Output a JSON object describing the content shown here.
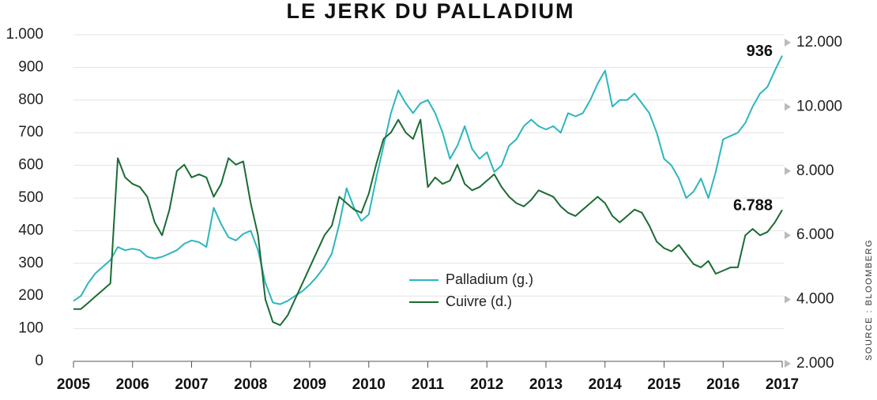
{
  "chart_data": {
    "type": "line",
    "title": "LE JERK DU PALLADIUM",
    "source": "SOURCE : BLOOMBERG",
    "x": [
      2005,
      2005.125,
      2005.25,
      2005.375,
      2005.5,
      2005.625,
      2005.75,
      2005.875,
      2006,
      2006.125,
      2006.25,
      2006.375,
      2006.5,
      2006.625,
      2006.75,
      2006.875,
      2007,
      2007.125,
      2007.25,
      2007.375,
      2007.5,
      2007.625,
      2007.75,
      2007.875,
      2008,
      2008.125,
      2008.25,
      2008.375,
      2008.5,
      2008.625,
      2008.75,
      2008.875,
      2009,
      2009.125,
      2009.25,
      2009.375,
      2009.5,
      2009.625,
      2009.75,
      2009.875,
      2010,
      2010.125,
      2010.25,
      2010.375,
      2010.5,
      2010.625,
      2010.75,
      2010.875,
      2011,
      2011.125,
      2011.25,
      2011.375,
      2011.5,
      2011.625,
      2011.75,
      2011.875,
      2012,
      2012.125,
      2012.25,
      2012.375,
      2012.5,
      2012.625,
      2012.75,
      2012.875,
      2013,
      2013.125,
      2013.25,
      2013.375,
      2013.5,
      2013.625,
      2013.75,
      2013.875,
      2014,
      2014.125,
      2014.25,
      2014.375,
      2014.5,
      2014.625,
      2014.75,
      2014.875,
      2015,
      2015.125,
      2015.25,
      2015.375,
      2015.5,
      2015.625,
      2015.75,
      2015.875,
      2016,
      2016.125,
      2016.25,
      2016.375,
      2016.5,
      2016.625,
      2016.75,
      2016.875,
      2017
    ],
    "series": [
      {
        "name": "Palladium (g.)",
        "color": "#2db6bd",
        "axis": "y",
        "values": [
          185,
          200,
          240,
          270,
          290,
          310,
          350,
          340,
          345,
          340,
          320,
          315,
          320,
          330,
          340,
          360,
          370,
          365,
          350,
          470,
          420,
          380,
          370,
          390,
          400,
          340,
          240,
          180,
          175,
          185,
          200,
          215,
          235,
          260,
          290,
          330,
          420,
          530,
          470,
          430,
          450,
          560,
          660,
          760,
          830,
          790,
          760,
          790,
          800,
          760,
          700,
          620,
          660,
          720,
          650,
          620,
          640,
          580,
          600,
          660,
          680,
          720,
          740,
          720,
          710,
          720,
          700,
          760,
          750,
          760,
          800,
          850,
          890,
          780,
          800,
          800,
          820,
          790,
          760,
          700,
          620,
          600,
          560,
          500,
          520,
          560,
          500,
          580,
          680,
          690,
          700,
          730,
          780,
          820,
          840,
          890,
          936
        ],
        "value_labels": [
          null,
          null,
          null,
          null,
          null,
          null,
          null,
          null,
          null,
          null,
          null,
          null,
          null,
          null,
          null,
          null,
          null,
          null,
          null,
          null,
          null,
          null,
          null,
          null,
          null,
          null,
          null,
          null,
          null,
          null,
          null,
          null,
          null,
          null,
          null,
          null,
          null,
          null,
          null,
          null,
          null,
          null,
          null,
          null,
          null,
          null,
          null,
          null,
          null,
          null,
          null,
          null,
          null,
          null,
          null,
          null,
          null,
          null,
          null,
          null,
          null,
          null,
          null,
          null,
          null,
          null,
          null,
          null,
          null,
          null,
          null,
          null,
          null,
          null,
          null,
          null,
          null,
          null,
          null,
          null,
          null,
          null,
          null,
          null,
          null,
          null,
          null,
          null,
          null,
          null,
          null,
          null,
          null,
          null,
          null,
          null,
          "936"
        ]
      },
      {
        "name": "Cuivre (d.)",
        "color": "#1b6b34",
        "axis": "y2",
        "values": [
          3700,
          3700,
          3900,
          4100,
          4300,
          4500,
          8400,
          7800,
          7600,
          7500,
          7200,
          6400,
          6000,
          6800,
          8000,
          8200,
          7800,
          7900,
          7800,
          7200,
          7600,
          8400,
          8200,
          8300,
          7000,
          6000,
          4000,
          3300,
          3200,
          3500,
          4000,
          4500,
          5000,
          5500,
          6000,
          6300,
          7200,
          7000,
          6800,
          6700,
          7300,
          8200,
          9000,
          9200,
          9600,
          9200,
          9000,
          9600,
          7500,
          7800,
          7600,
          7700,
          8200,
          7600,
          7400,
          7500,
          7700,
          7900,
          7500,
          7200,
          7000,
          6900,
          7100,
          7400,
          7300,
          7200,
          6900,
          6700,
          6600,
          6800,
          7000,
          7200,
          7000,
          6600,
          6400,
          6600,
          6800,
          6700,
          6300,
          5800,
          5600,
          5500,
          5700,
          5400,
          5100,
          5000,
          5200,
          4800,
          4900,
          5000,
          5000,
          6000,
          6200,
          6000,
          6100,
          6400,
          6788
        ],
        "value_labels": [
          null,
          null,
          null,
          null,
          null,
          null,
          null,
          null,
          null,
          null,
          null,
          null,
          null,
          null,
          null,
          null,
          null,
          null,
          null,
          null,
          null,
          null,
          null,
          null,
          null,
          null,
          null,
          null,
          null,
          null,
          null,
          null,
          null,
          null,
          null,
          null,
          null,
          null,
          null,
          null,
          null,
          null,
          null,
          null,
          null,
          null,
          null,
          null,
          null,
          null,
          null,
          null,
          null,
          null,
          null,
          null,
          null,
          null,
          null,
          null,
          null,
          null,
          null,
          null,
          null,
          null,
          null,
          null,
          null,
          null,
          null,
          null,
          null,
          null,
          null,
          null,
          null,
          null,
          null,
          null,
          null,
          null,
          null,
          null,
          null,
          null,
          null,
          null,
          null,
          null,
          null,
          null,
          null,
          null,
          null,
          null,
          "6.788"
        ]
      }
    ],
    "xlim": [
      2005,
      2017
    ],
    "xticks": [
      2005,
      2006,
      2007,
      2008,
      2009,
      2010,
      2011,
      2012,
      2013,
      2014,
      2015,
      2016,
      2017
    ],
    "ylim": [
      0,
      1000
    ],
    "yticks": [
      0,
      100,
      200,
      300,
      400,
      500,
      600,
      700,
      800,
      900,
      {
        "value": 1000,
        "label": "1.000"
      }
    ],
    "y2lim": [
      2000,
      12000
    ],
    "y2ticks": [
      {
        "value": 2000,
        "label": "2.000"
      },
      {
        "value": 4000,
        "label": "4.000"
      },
      {
        "value": 6000,
        "label": "6.000"
      },
      {
        "value": 8000,
        "label": "8.000"
      },
      {
        "value": 10000,
        "label": "10.000"
      },
      {
        "value": 12000,
        "label": "12.000"
      }
    ],
    "grid": true
  }
}
